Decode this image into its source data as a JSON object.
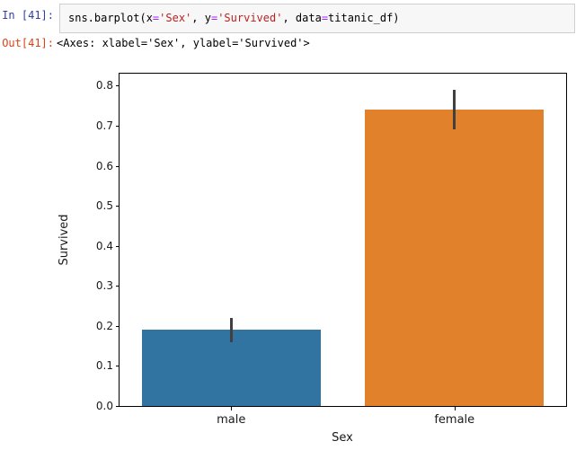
{
  "notebook": {
    "input": {
      "prompt": "In [41]:",
      "code_tokens": [
        {
          "text": "sns.barplot(x",
          "type": "plain"
        },
        {
          "text": "=",
          "type": "operator"
        },
        {
          "text": "'Sex'",
          "type": "string"
        },
        {
          "text": ", y",
          "type": "plain"
        },
        {
          "text": "=",
          "type": "operator"
        },
        {
          "text": "'Survived'",
          "type": "string"
        },
        {
          "text": ", data",
          "type": "plain"
        },
        {
          "text": "=",
          "type": "operator"
        },
        {
          "text": "titanic_df)",
          "type": "plain"
        }
      ]
    },
    "output": {
      "prompt": "Out[41]:",
      "text": "<Axes: xlabel='Sex', ylabel='Survived'>"
    }
  },
  "chart_data": {
    "type": "bar",
    "categories": [
      "male",
      "female"
    ],
    "values": [
      0.19,
      0.74
    ],
    "error_bars": [
      [
        0.16,
        0.22
      ],
      [
        0.69,
        0.79
      ]
    ],
    "title": "",
    "xlabel": "Sex",
    "ylabel": "Survived",
    "ylim": [
      0,
      0.83
    ],
    "ytick_labels": [
      "0.0",
      "0.1",
      "0.2",
      "0.3",
      "0.4",
      "0.5",
      "0.6",
      "0.7",
      "0.8"
    ],
    "grid": false,
    "legend": false,
    "bar_colors": [
      "#3274a1",
      "#e1812c"
    ],
    "errorbar_color": "#404040"
  },
  "colors": {
    "prompt_in": "#303f9f",
    "prompt_out": "#d84315",
    "code_string": "#ba2121",
    "code_operator": "#aa22ff",
    "code_text": "#000000",
    "cell_bg": "#f7f7f7",
    "cell_border": "#cfcfcf",
    "axis_spine": "#000000",
    "tick_text": "#1a1a1a"
  }
}
